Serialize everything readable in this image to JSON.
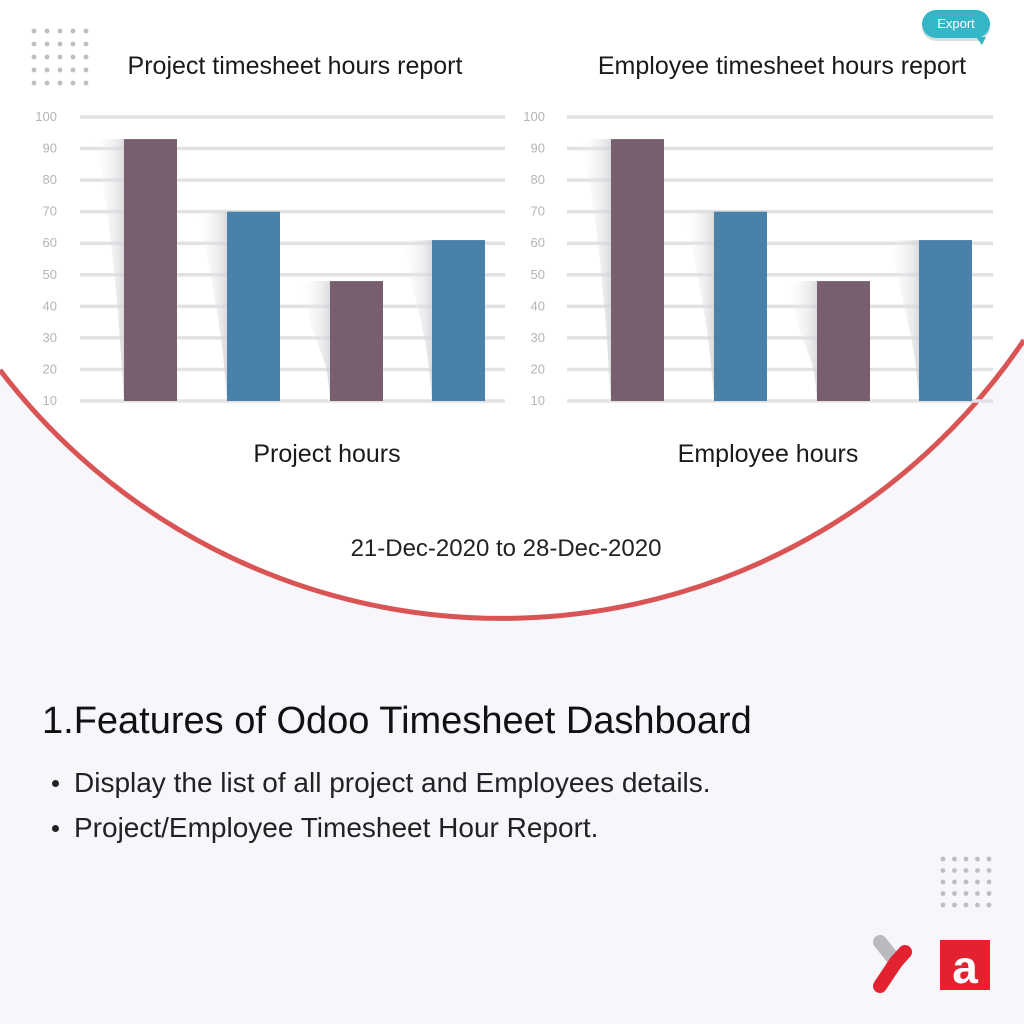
{
  "export_label": "Export",
  "date_range": "21-Dec-2020 to 28-Dec-2020",
  "features": {
    "heading": "1.Features of Odoo Timesheet Dashboard",
    "items": [
      "Display the list of all project and Employees details.",
      "Project/Employee Timesheet Hour Report."
    ]
  },
  "colors": {
    "purple_bar": "#785f6f",
    "blue_bar": "#4a81a8",
    "arc": "#d95555",
    "export_button": "#34b6c7"
  },
  "chart_data": [
    {
      "type": "bar",
      "title": "Project timesheet hours report",
      "xlabel": "Project hours",
      "ylabel": "",
      "categories": [
        "",
        "",
        "",
        ""
      ],
      "values": [
        93,
        70,
        48,
        61
      ],
      "bar_colors": [
        "#785f6f",
        "#4a81a8",
        "#785f6f",
        "#4a81a8"
      ],
      "yticks": [
        10,
        20,
        30,
        40,
        50,
        60,
        70,
        80,
        90,
        100
      ],
      "ylim": [
        10,
        100
      ],
      "grid": true,
      "legend": "none"
    },
    {
      "type": "bar",
      "title": "Employee timesheet hours report",
      "xlabel": "Employee hours",
      "ylabel": "",
      "categories": [
        "",
        "",
        "",
        ""
      ],
      "values": [
        93,
        70,
        48,
        61
      ],
      "bar_colors": [
        "#785f6f",
        "#4a81a8",
        "#785f6f",
        "#4a81a8"
      ],
      "yticks": [
        10,
        20,
        30,
        40,
        50,
        60,
        70,
        80,
        90,
        100
      ],
      "ylim": [
        10,
        100
      ],
      "grid": true,
      "legend": "none"
    }
  ]
}
